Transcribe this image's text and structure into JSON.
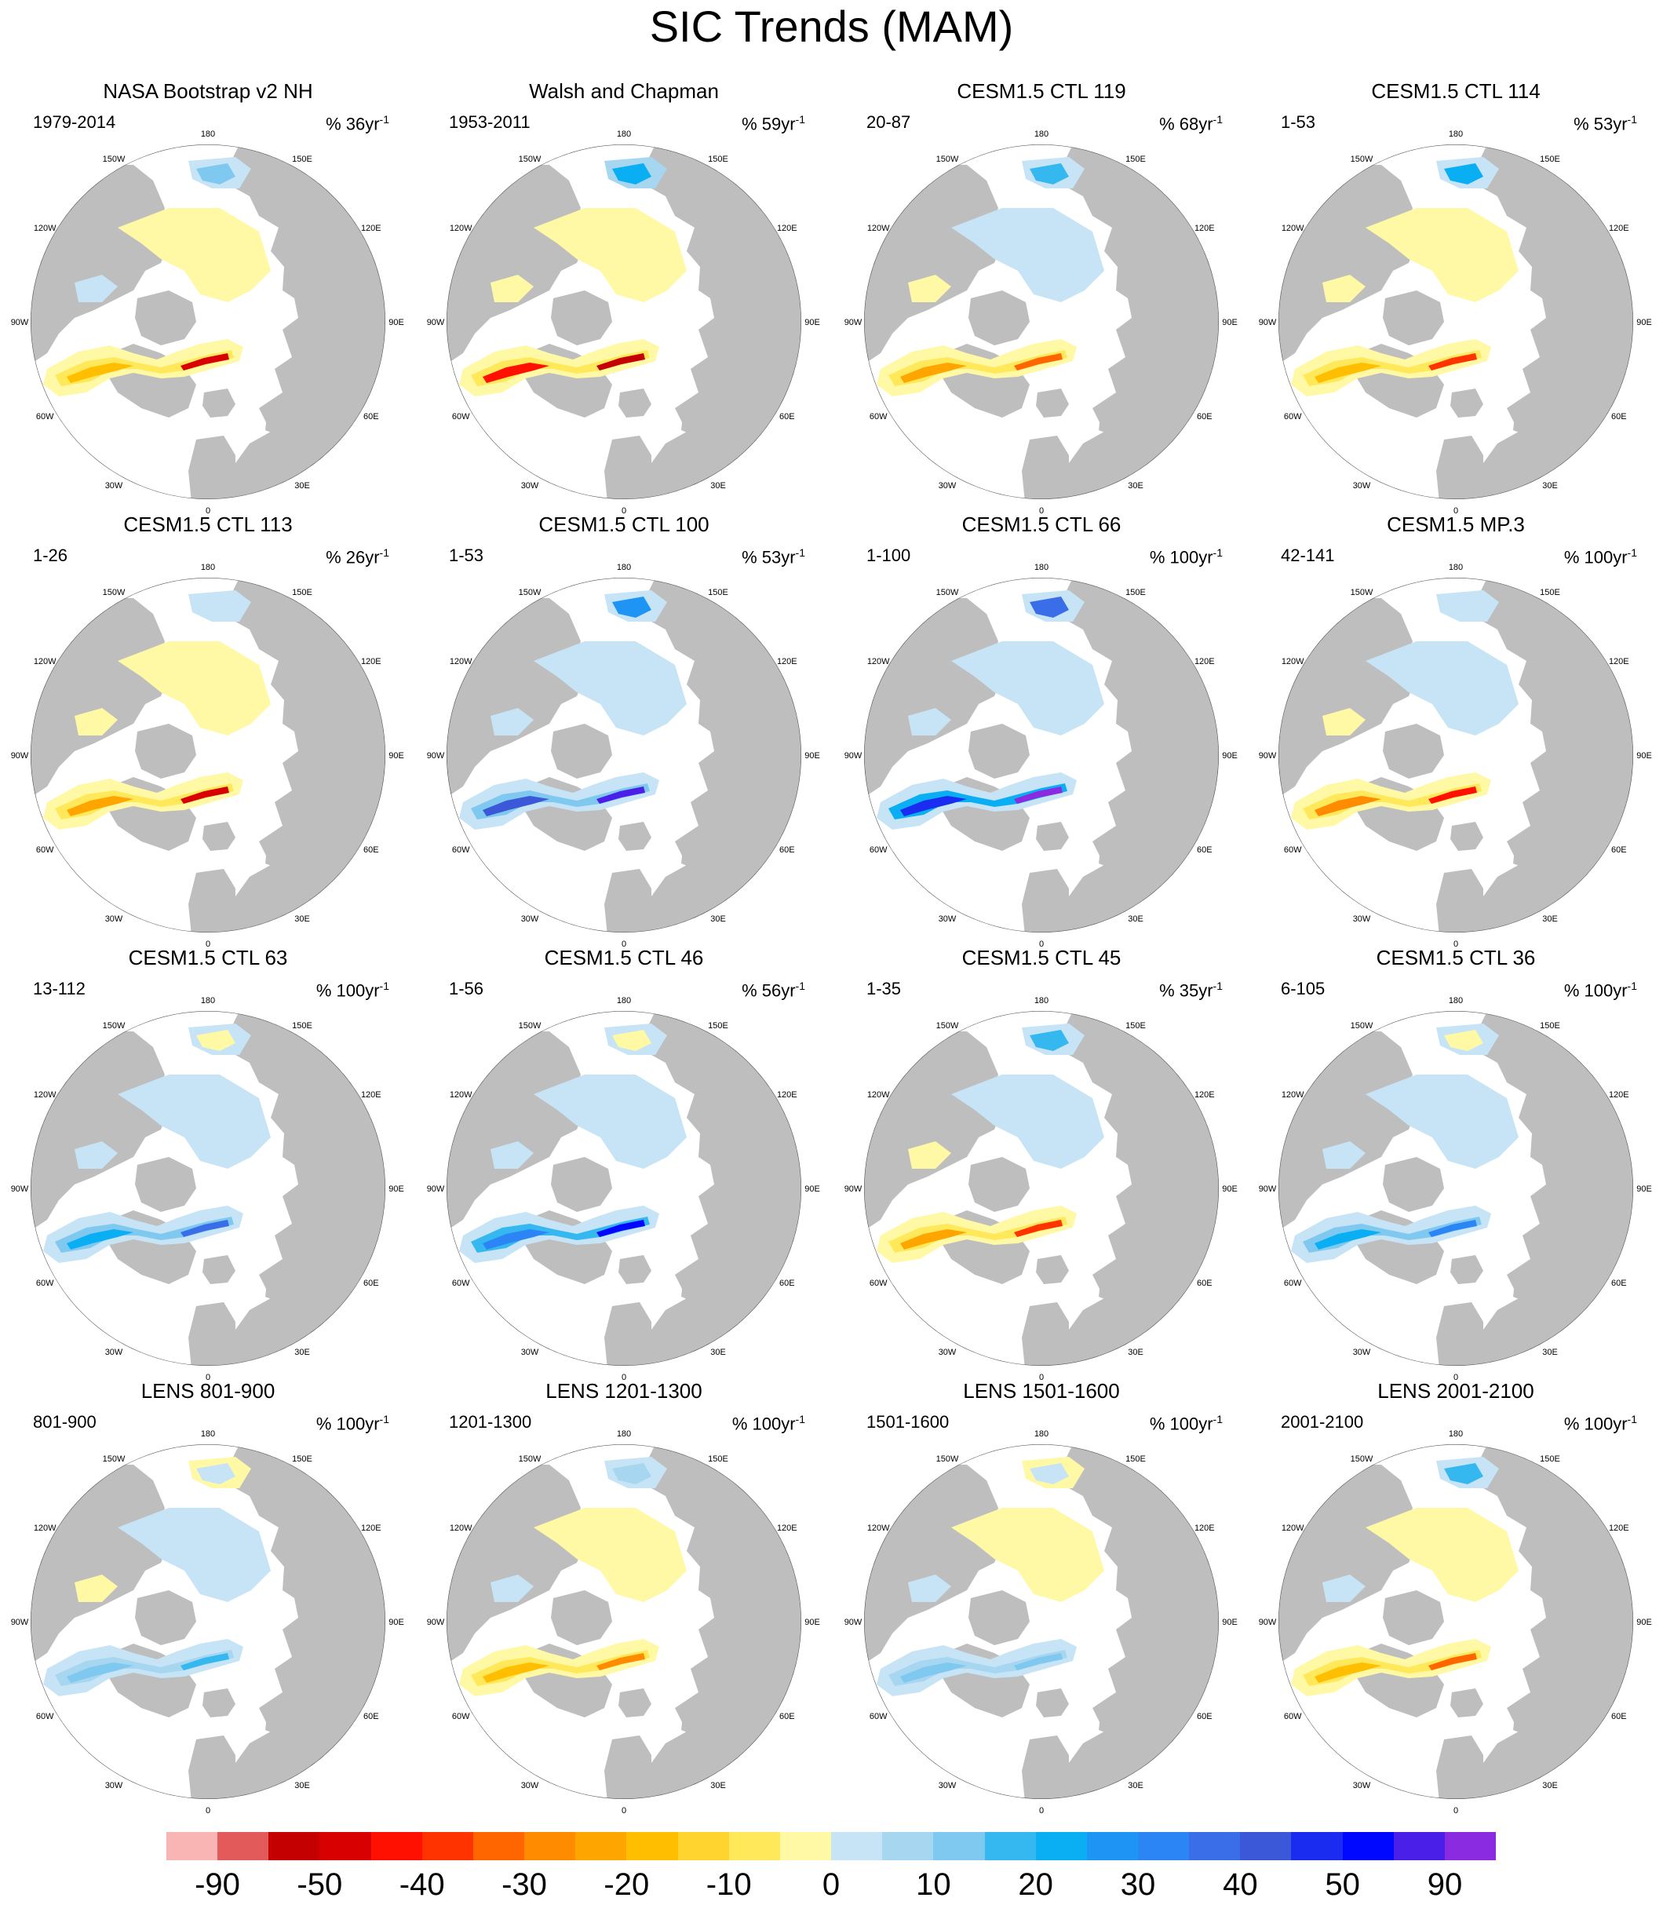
{
  "title": "SIC Trends (MAM)",
  "longitude_labels": [
    "180",
    "150E",
    "120E",
    "90E",
    "60E",
    "30E",
    "0",
    "30W",
    "60W",
    "90W",
    "120W",
    "150W"
  ],
  "panels": [
    {
      "title": "NASA Bootstrap v2 NH",
      "period": "1979-2014",
      "unit_prefix": "% 36yr",
      "unit_exp": "-1"
    },
    {
      "title": "Walsh and Chapman",
      "period": "1953-2011",
      "unit_prefix": "% 59yr",
      "unit_exp": "-1"
    },
    {
      "title": "CESM1.5 CTL 119",
      "period": "20-87",
      "unit_prefix": "% 68yr",
      "unit_exp": "-1"
    },
    {
      "title": "CESM1.5 CTL 114",
      "period": "1-53",
      "unit_prefix": "% 53yr",
      "unit_exp": "-1"
    },
    {
      "title": "CESM1.5 CTL 113",
      "period": "1-26",
      "unit_prefix": "% 26yr",
      "unit_exp": "-1"
    },
    {
      "title": "CESM1.5 CTL 100",
      "period": "1-53",
      "unit_prefix": "% 53yr",
      "unit_exp": "-1"
    },
    {
      "title": "CESM1.5 CTL 66",
      "period": "1-100",
      "unit_prefix": "% 100yr",
      "unit_exp": "-1"
    },
    {
      "title": "CESM1.5 MP.3",
      "period": "42-141",
      "unit_prefix": "% 100yr",
      "unit_exp": "-1"
    },
    {
      "title": "CESM1.5 CTL 63",
      "period": "13-112",
      "unit_prefix": "% 100yr",
      "unit_exp": "-1"
    },
    {
      "title": "CESM1.5 CTL 46",
      "period": "1-56",
      "unit_prefix": "% 56yr",
      "unit_exp": "-1"
    },
    {
      "title": "CESM1.5 CTL 45",
      "period": "1-35",
      "unit_prefix": "% 35yr",
      "unit_exp": "-1"
    },
    {
      "title": "CESM1.5 CTL 36",
      "period": "6-105",
      "unit_prefix": "% 100yr",
      "unit_exp": "-1"
    },
    {
      "title": "LENS 801-900",
      "period": "801-900",
      "unit_prefix": "% 100yr",
      "unit_exp": "-1"
    },
    {
      "title": "LENS 1201-1300",
      "period": "1201-1300",
      "unit_prefix": "% 100yr",
      "unit_exp": "-1"
    },
    {
      "title": "LENS 1501-1600",
      "period": "1501-1600",
      "unit_prefix": "% 100yr",
      "unit_exp": "-1"
    },
    {
      "title": "LENS 2001-2100",
      "period": "2001-2100",
      "unit_prefix": "% 100yr",
      "unit_exp": "-1"
    }
  ],
  "colors": {
    "land": "#bebebe",
    "ocean": "#ffffff",
    "ice_neutral_pos": "#c6e4f5",
    "ice_neutral_neg": "#fff6a8",
    "strong_decline": "#d7191c",
    "strong_increase": "#3b2bd8"
  },
  "colorbar": {
    "colors": [
      "#f9b4b4",
      "#e35a5a",
      "#c40000",
      "#d80000",
      "#ff1000",
      "#ff3300",
      "#ff6600",
      "#ff8c00",
      "#ffa500",
      "#ffbf00",
      "#ffd42e",
      "#ffe85a",
      "#fff9a6",
      "#c6e4f5",
      "#a6d6f0",
      "#7fc8ef",
      "#35b8f0",
      "#0aaef3",
      "#1e95f5",
      "#2b85f5",
      "#3a6ee8",
      "#3b58d8",
      "#1a2cf0",
      "#0008ff",
      "#4a1fe8",
      "#8a2be2"
    ],
    "labels": [
      "-90",
      "-50",
      "-40",
      "-30",
      "-20",
      "-10",
      "0",
      "10",
      "20",
      "30",
      "40",
      "50",
      "90"
    ]
  }
}
